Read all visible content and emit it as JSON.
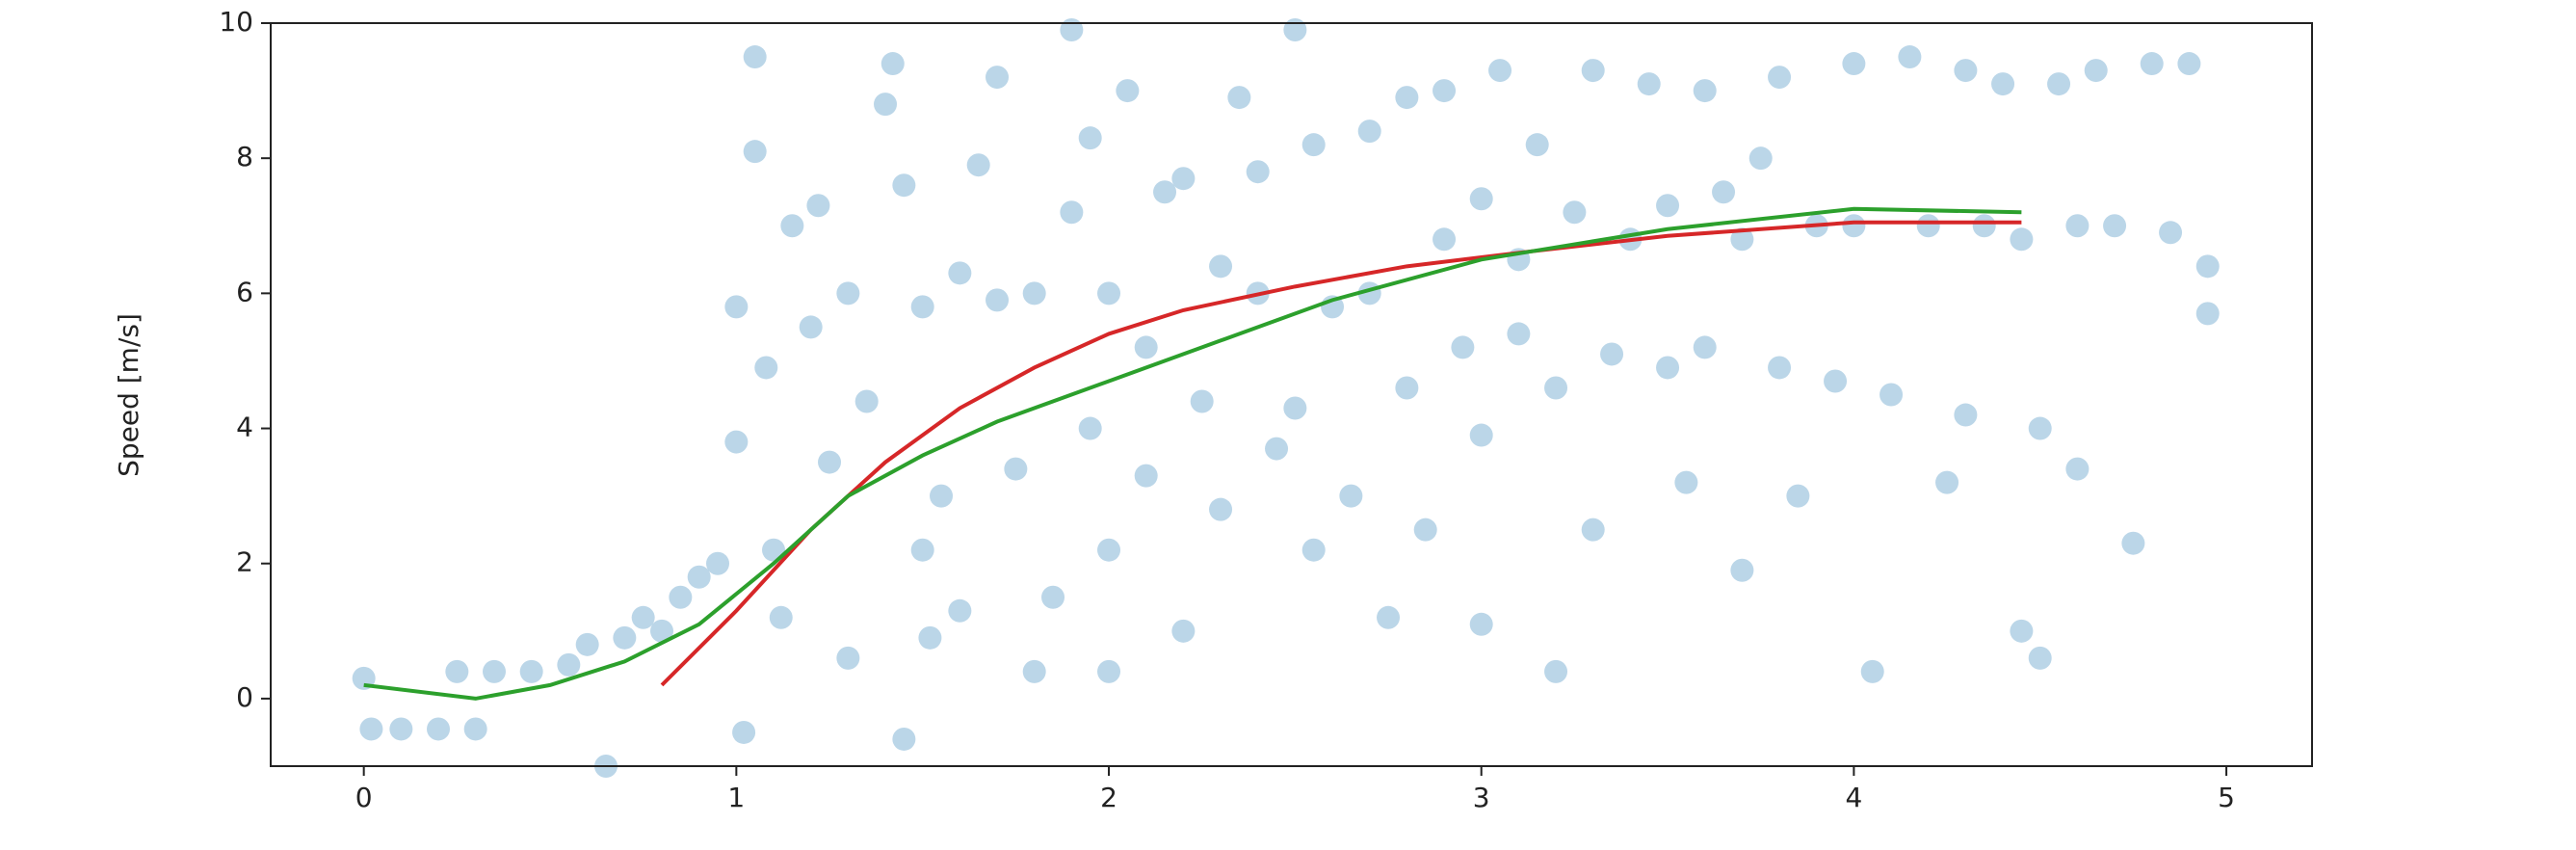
{
  "chart_data": {
    "type": "scatter",
    "ylabel": "Speed [m/s]",
    "xlim": [
      -0.25,
      5.23
    ],
    "ylim": [
      -1,
      10
    ],
    "xticks": [
      0,
      1,
      2,
      3,
      4,
      5
    ],
    "yticks": [
      0,
      2,
      4,
      6,
      8,
      10
    ],
    "grid": false,
    "points": {
      "color": "#1f77b4",
      "x": [
        0,
        0.02,
        0.1,
        0.2,
        0.3,
        0.25,
        0.35,
        0.45,
        0.55,
        0.6,
        0.7,
        0.75,
        0.8,
        0.85,
        0.9,
        0.95,
        0.65,
        1,
        1,
        1.02,
        1.05,
        1.05,
        1.08,
        1.1,
        1.12,
        1.15,
        1.2,
        1.22,
        1.25,
        1.3,
        1.3,
        1.35,
        1.4,
        1.42,
        1.45,
        1.45,
        1.5,
        1.5,
        1.52,
        1.55,
        1.6,
        1.6,
        1.65,
        1.7,
        1.7,
        1.75,
        1.8,
        1.8,
        1.85,
        1.9,
        1.9,
        1.95,
        1.95,
        2,
        2,
        2,
        2.05,
        2.1,
        2.1,
        2.15,
        2.2,
        2.2,
        2.25,
        2.3,
        2.3,
        2.35,
        2.4,
        2.4,
        2.45,
        2.5,
        2.5,
        2.55,
        2.55,
        2.6,
        2.65,
        2.7,
        2.7,
        2.75,
        2.8,
        2.8,
        2.85,
        2.9,
        2.9,
        2.95,
        3,
        3,
        3,
        3.05,
        3.1,
        3.1,
        3.15,
        3.2,
        3.2,
        3.25,
        3.3,
        3.3,
        3.35,
        3.4,
        3.45,
        3.5,
        3.5,
        3.55,
        3.6,
        3.6,
        3.65,
        3.7,
        3.7,
        3.75,
        3.8,
        3.8,
        3.85,
        3.9,
        3.95,
        4,
        4,
        4.05,
        4.1,
        4.15,
        4.2,
        4.25,
        4.3,
        4.3,
        4.35,
        4.4,
        4.45,
        4.45,
        4.5,
        4.5,
        4.55,
        4.6,
        4.6,
        4.65,
        4.7,
        4.75,
        4.8,
        4.85,
        4.9,
        4.95,
        4.95
      ],
      "y": [
        0.3,
        -0.45,
        -0.45,
        -0.45,
        -0.45,
        0.4,
        0.4,
        0.4,
        0.5,
        0.8,
        0.9,
        1.2,
        1.0,
        1.5,
        1.8,
        2.0,
        -1.0,
        3.8,
        5.8,
        -0.5,
        8.1,
        9.5,
        4.9,
        2.2,
        1.2,
        7.0,
        5.5,
        7.3,
        3.5,
        0.6,
        6.0,
        4.4,
        8.8,
        9.4,
        7.6,
        -0.6,
        5.8,
        2.2,
        0.9,
        3.0,
        6.3,
        1.3,
        7.9,
        5.9,
        9.2,
        3.4,
        6.0,
        0.4,
        1.5,
        9.9,
        7.2,
        4.0,
        8.3,
        6.0,
        2.2,
        0.4,
        9.0,
        5.2,
        3.3,
        7.5,
        7.7,
        1.0,
        4.4,
        2.8,
        6.4,
        8.9,
        6.0,
        7.8,
        3.7,
        4.3,
        9.9,
        8.2,
        2.2,
        5.8,
        3.0,
        8.4,
        6.0,
        1.2,
        4.6,
        8.9,
        2.5,
        6.8,
        9.0,
        5.2,
        3.9,
        7.4,
        1.1,
        9.3,
        6.5,
        5.4,
        8.2,
        4.6,
        0.4,
        7.2,
        9.3,
        2.5,
        5.1,
        6.8,
        9.1,
        7.3,
        4.9,
        3.2,
        9.0,
        5.2,
        7.5,
        1.9,
        6.8,
        8.0,
        9.2,
        4.9,
        3.0,
        7.0,
        4.7,
        9.4,
        7.0,
        0.4,
        4.5,
        9.5,
        7.0,
        3.2,
        9.3,
        4.2,
        7.0,
        9.1,
        1.0,
        6.8,
        4.0,
        0.6,
        9.1,
        3.4,
        7.0,
        9.3,
        7.0,
        2.3,
        9.4,
        6.9,
        9.4,
        6.4,
        5.7
      ]
    },
    "lines": [
      {
        "color": "#d62728",
        "x": [
          0.8,
          1.0,
          1.2,
          1.4,
          1.6,
          1.8,
          2.0,
          2.2,
          2.5,
          2.8,
          3.1,
          3.5,
          4.0,
          4.45
        ],
        "y": [
          0.2,
          1.3,
          2.5,
          3.5,
          4.3,
          4.9,
          5.4,
          5.75,
          6.1,
          6.4,
          6.6,
          6.85,
          7.05,
          7.05
        ]
      },
      {
        "color": "#2ca02c",
        "x": [
          0,
          0.3,
          0.5,
          0.7,
          0.9,
          1.1,
          1.3,
          1.5,
          1.7,
          2,
          2.3,
          2.6,
          3,
          3.5,
          4,
          4.45
        ],
        "y": [
          0.2,
          0,
          0.2,
          0.55,
          1.1,
          2.0,
          3.0,
          3.6,
          4.1,
          4.7,
          5.3,
          5.9,
          6.5,
          6.95,
          7.25,
          7.2
        ]
      }
    ]
  }
}
